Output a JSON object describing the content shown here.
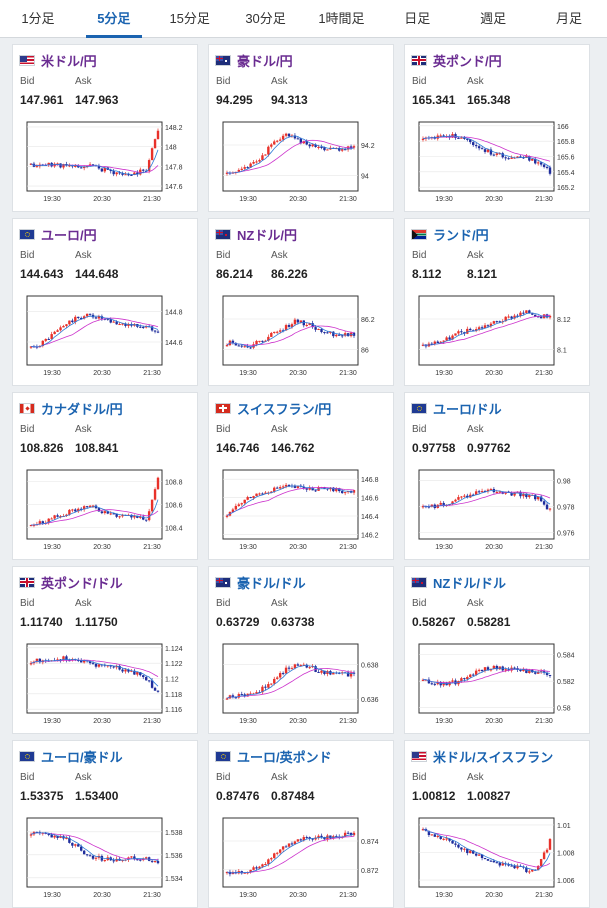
{
  "tabs": [
    {
      "label": "1分足",
      "active": false
    },
    {
      "label": "5分足",
      "active": true
    },
    {
      "label": "15分足",
      "active": false
    },
    {
      "label": "30分足",
      "active": false
    },
    {
      "label": "1時間足",
      "active": false
    },
    {
      "label": "日足",
      "active": false
    },
    {
      "label": "週足",
      "active": false
    },
    {
      "label": "月足",
      "active": false
    }
  ],
  "labels": {
    "bid": "Bid",
    "ask": "Ask"
  },
  "colors": {
    "up": "#e8312a",
    "down": "#1f2d9c",
    "ma1": "#cc33cc",
    "ma2": "#2d7ad6",
    "purple": "#6a2c91",
    "blue": "#1a63b0"
  },
  "pairs": [
    {
      "name": "米ドル/円",
      "color": "purple",
      "flags": [
        "us",
        "jp"
      ],
      "bid": "147.961",
      "ask": "147.963",
      "chart_data": {
        "type": "candlestick",
        "x_ticks": [
          "19:30",
          "20:30",
          "21:30"
        ],
        "y_ticks": [
          "148.2",
          "148",
          "147.8",
          "147.6"
        ],
        "ylim": [
          147.55,
          148.25
        ],
        "seed": 11,
        "shape": [
          0.35,
          0.36,
          0.38,
          0.34,
          0.32,
          0.36,
          0.3,
          0.25,
          0.2,
          0.22,
          0.3,
          0.95
        ]
      }
    },
    {
      "name": "豪ドル/円",
      "color": "purple",
      "flags": [
        "au",
        "jp"
      ],
      "bid": "94.295",
      "ask": "94.313",
      "chart_data": {
        "type": "candlestick",
        "x_ticks": [
          "19:30",
          "20:30",
          "21:30"
        ],
        "y_ticks": [
          "94.2",
          "94"
        ],
        "ylim": [
          93.9,
          94.35
        ],
        "seed": 23,
        "shape": [
          0.2,
          0.25,
          0.35,
          0.5,
          0.72,
          0.85,
          0.78,
          0.7,
          0.65,
          0.62,
          0.6,
          0.7
        ]
      }
    },
    {
      "name": "英ポンド/円",
      "color": "purple",
      "flags": [
        "gb",
        "jp"
      ],
      "bid": "165.341",
      "ask": "165.348",
      "chart_data": {
        "type": "candlestick",
        "x_ticks": [
          "19:30",
          "20:30",
          "21:30"
        ],
        "y_ticks": [
          "166",
          "165.8",
          "165.6",
          "165.4",
          "165.2"
        ],
        "ylim": [
          165.15,
          166.05
        ],
        "seed": 37,
        "shape": [
          0.78,
          0.8,
          0.82,
          0.84,
          0.75,
          0.65,
          0.55,
          0.5,
          0.5,
          0.48,
          0.4,
          0.25
        ]
      }
    },
    {
      "name": "ユーロ/円",
      "color": "purple",
      "flags": [
        "eu",
        "jp"
      ],
      "bid": "144.643",
      "ask": "144.648",
      "chart_data": {
        "type": "candlestick",
        "x_ticks": [
          "19:30",
          "20:30",
          "21:30"
        ],
        "y_ticks": [
          "144.8",
          "144.6"
        ],
        "ylim": [
          144.45,
          144.9
        ],
        "seed": 41,
        "shape": [
          0.2,
          0.3,
          0.45,
          0.6,
          0.7,
          0.75,
          0.7,
          0.62,
          0.6,
          0.58,
          0.55,
          0.5
        ]
      }
    },
    {
      "name": "NZドル/円",
      "color": "purple",
      "flags": [
        "nz",
        "jp"
      ],
      "bid": "86.214",
      "ask": "86.226",
      "chart_data": {
        "type": "candlestick",
        "x_ticks": [
          "19:30",
          "20:30",
          "21:30"
        ],
        "y_ticks": [
          "86.2",
          "86"
        ],
        "ylim": [
          85.9,
          86.35
        ],
        "seed": 53,
        "shape": [
          0.3,
          0.28,
          0.25,
          0.32,
          0.45,
          0.55,
          0.65,
          0.6,
          0.5,
          0.45,
          0.42,
          0.45
        ]
      }
    },
    {
      "name": "ランド/円",
      "color": "blue",
      "flags": [
        "za",
        "jp"
      ],
      "bid": "8.112",
      "ask": "8.121",
      "chart_data": {
        "type": "candlestick",
        "x_ticks": [
          "19:30",
          "20:30",
          "21:30"
        ],
        "y_ticks": [
          "8.12",
          "8.1"
        ],
        "ylim": [
          8.09,
          8.135
        ],
        "seed": 67,
        "shape": [
          0.25,
          0.3,
          0.35,
          0.45,
          0.5,
          0.55,
          0.62,
          0.68,
          0.75,
          0.8,
          0.75,
          0.7
        ]
      }
    },
    {
      "name": "カナダドル/円",
      "color": "blue",
      "flags": [
        "ca",
        "jp"
      ],
      "bid": "108.826",
      "ask": "108.841",
      "chart_data": {
        "type": "candlestick",
        "x_ticks": [
          "19:30",
          "20:30",
          "21:30"
        ],
        "y_ticks": [
          "108.8",
          "108.6",
          "108.4"
        ],
        "ylim": [
          108.3,
          108.9
        ],
        "seed": 71,
        "shape": [
          0.2,
          0.22,
          0.28,
          0.35,
          0.42,
          0.48,
          0.4,
          0.35,
          0.3,
          0.28,
          0.25,
          0.9
        ]
      }
    },
    {
      "name": "スイスフラン/円",
      "color": "blue",
      "flags": [
        "ch",
        "jp"
      ],
      "bid": "146.746",
      "ask": "146.762",
      "chart_data": {
        "type": "candlestick",
        "x_ticks": [
          "19:30",
          "20:30",
          "21:30"
        ],
        "y_ticks": [
          "146.8",
          "146.6",
          "146.4",
          "146.2"
        ],
        "ylim": [
          146.15,
          146.9
        ],
        "seed": 83,
        "shape": [
          0.35,
          0.5,
          0.62,
          0.7,
          0.75,
          0.8,
          0.78,
          0.76,
          0.75,
          0.74,
          0.72,
          0.7
        ]
      }
    },
    {
      "name": "ユーロ/ドル",
      "color": "blue",
      "flags": [
        "eu",
        "us"
      ],
      "bid": "0.97758",
      "ask": "0.97762",
      "chart_data": {
        "type": "candlestick",
        "x_ticks": [
          "19:30",
          "20:30",
          "21:30"
        ],
        "y_ticks": [
          "0.98",
          "0.978",
          "0.976"
        ],
        "ylim": [
          0.9755,
          0.9808
        ],
        "seed": 97,
        "shape": [
          0.45,
          0.48,
          0.52,
          0.6,
          0.65,
          0.75,
          0.72,
          0.7,
          0.68,
          0.66,
          0.6,
          0.4
        ]
      }
    },
    {
      "name": "英ポンド/ドル",
      "color": "purple",
      "flags": [
        "gb",
        "us"
      ],
      "bid": "1.11740",
      "ask": "1.11750",
      "chart_data": {
        "type": "candlestick",
        "x_ticks": [
          "19:30",
          "20:30",
          "21:30"
        ],
        "y_ticks": [
          "1.124",
          "1.122",
          "1.12",
          "1.118",
          "1.116"
        ],
        "ylim": [
          1.1155,
          1.1245
        ],
        "seed": 101,
        "shape": [
          0.78,
          0.8,
          0.82,
          0.84,
          0.8,
          0.75,
          0.72,
          0.7,
          0.65,
          0.6,
          0.5,
          0.25
        ]
      }
    },
    {
      "name": "豪ドル/ドル",
      "color": "blue",
      "flags": [
        "au",
        "us"
      ],
      "bid": "0.63729",
      "ask": "0.63738",
      "chart_data": {
        "type": "candlestick",
        "x_ticks": [
          "19:30",
          "20:30",
          "21:30"
        ],
        "y_ticks": [
          "0.638",
          "0.636"
        ],
        "ylim": [
          0.6352,
          0.6392
        ],
        "seed": 113,
        "shape": [
          0.2,
          0.22,
          0.25,
          0.32,
          0.45,
          0.65,
          0.72,
          0.7,
          0.62,
          0.6,
          0.58,
          0.55
        ]
      }
    },
    {
      "name": "NZドル/ドル",
      "color": "blue",
      "flags": [
        "nz",
        "us"
      ],
      "bid": "0.58267",
      "ask": "0.58281",
      "chart_data": {
        "type": "candlestick",
        "x_ticks": [
          "19:30",
          "20:30",
          "21:30"
        ],
        "y_ticks": [
          "0.584",
          "0.582",
          "0.58"
        ],
        "ylim": [
          0.5796,
          0.5848
        ],
        "seed": 127,
        "shape": [
          0.45,
          0.42,
          0.4,
          0.45,
          0.55,
          0.65,
          0.68,
          0.66,
          0.64,
          0.62,
          0.6,
          0.52
        ]
      }
    },
    {
      "name": "ユーロ/豪ドル",
      "color": "blue",
      "flags": [
        "eu",
        "au"
      ],
      "bid": "1.53375",
      "ask": "1.53400",
      "chart_data": {
        "type": "candlestick",
        "x_ticks": [
          "19:30",
          "20:30",
          "21:30"
        ],
        "y_ticks": [
          "1.538",
          "1.536",
          "1.534"
        ],
        "ylim": [
          1.5332,
          1.5392
        ],
        "seed": 131,
        "shape": [
          0.82,
          0.8,
          0.78,
          0.72,
          0.6,
          0.45,
          0.4,
          0.38,
          0.4,
          0.42,
          0.4,
          0.3
        ]
      }
    },
    {
      "name": "ユーロ/英ポンド",
      "color": "blue",
      "flags": [
        "eu",
        "gb"
      ],
      "bid": "0.87476",
      "ask": "0.87484",
      "chart_data": {
        "type": "candlestick",
        "x_ticks": [
          "19:30",
          "20:30",
          "21:30"
        ],
        "y_ticks": [
          "0.874",
          "0.872"
        ],
        "ylim": [
          0.8708,
          0.8756
        ],
        "seed": 139,
        "shape": [
          0.15,
          0.18,
          0.2,
          0.3,
          0.45,
          0.6,
          0.7,
          0.72,
          0.74,
          0.76,
          0.78,
          0.8
        ]
      }
    },
    {
      "name": "米ドル/スイスフラン",
      "color": "blue",
      "flags": [
        "us",
        "ch"
      ],
      "bid": "1.00812",
      "ask": "1.00827",
      "chart_data": {
        "type": "candlestick",
        "x_ticks": [
          "19:30",
          "20:30",
          "21:30"
        ],
        "y_ticks": [
          "1.01",
          "1.008",
          "1.006"
        ],
        "ylim": [
          1.0055,
          1.0105
        ],
        "seed": 151,
        "shape": [
          0.85,
          0.8,
          0.7,
          0.6,
          0.5,
          0.42,
          0.35,
          0.3,
          0.28,
          0.2,
          0.25,
          0.7
        ]
      }
    }
  ]
}
